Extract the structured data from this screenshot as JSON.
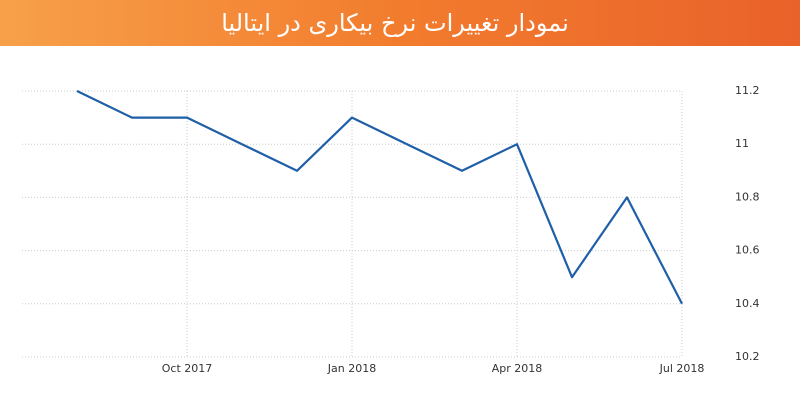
{
  "chart_data": {
    "type": "line",
    "title": "نمودار تغییرات نرخ بیکاری در ایتالیا",
    "categories": [
      null,
      null,
      "Oct 2017",
      null,
      null,
      "Jan 2018",
      null,
      null,
      "Apr 2018",
      null,
      null,
      "Jul 2018"
    ],
    "series": [
      {
        "color": "#1f5fa8",
        "values": [
          11.2,
          11.1,
          11.1,
          11.0,
          10.9,
          11.1,
          11.0,
          10.9,
          11.0,
          10.5,
          10.8,
          10.4
        ]
      }
    ],
    "ylim": [
      10.2,
      11.2
    ],
    "yticks": [
      10.2,
      10.4,
      10.6,
      10.8,
      11,
      11.2
    ],
    "grid": true
  }
}
